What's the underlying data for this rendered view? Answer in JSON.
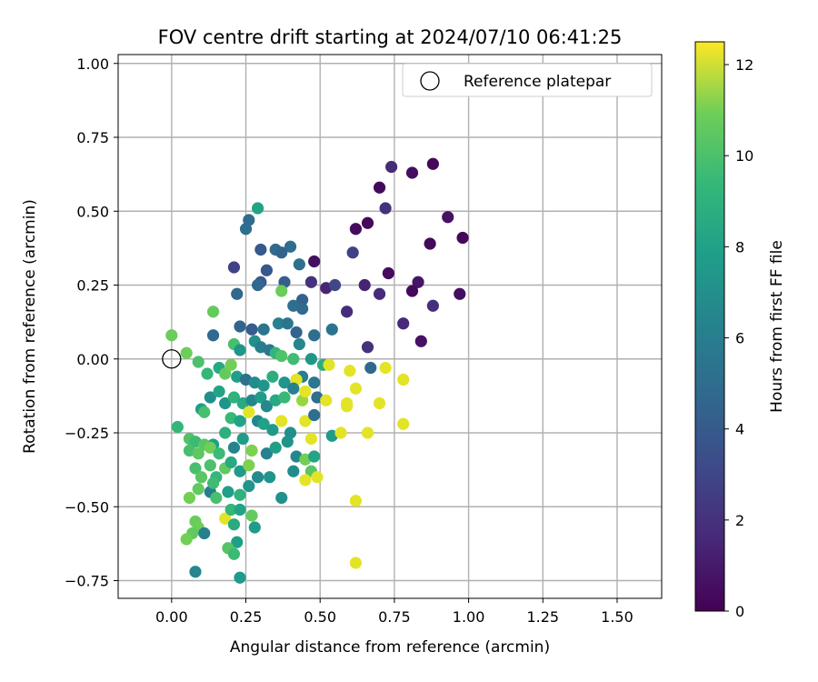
{
  "chart_data": {
    "type": "scatter",
    "title": "FOV centre drift starting at 2024/07/10 06:41:25",
    "xlabel": "Angular distance from reference (arcmin)",
    "ylabel": "Rotation from reference (arcmin)",
    "xlim": [
      -0.18,
      1.65
    ],
    "ylim": [
      -0.81,
      1.03
    ],
    "xticks": [
      "0.00",
      "0.25",
      "0.50",
      "0.75",
      "1.00",
      "1.25",
      "1.50"
    ],
    "xtick_values": [
      0,
      0.25,
      0.5,
      0.75,
      1.0,
      1.25,
      1.5
    ],
    "yticks": [
      "−0.75",
      "−0.50",
      "−0.25",
      "0.00",
      "0.25",
      "0.50",
      "0.75",
      "1.00"
    ],
    "ytick_values": [
      -0.75,
      -0.5,
      -0.25,
      0,
      0.25,
      0.5,
      0.75,
      1.0
    ],
    "grid": true,
    "legend": {
      "position": "top-right",
      "entries": [
        "Reference platepar"
      ]
    },
    "reference_point": {
      "x": 0.0,
      "y": 0.0
    },
    "colorbar": {
      "label": "Hours from first FF file",
      "range": [
        0,
        12.5
      ],
      "ticks": [
        "0",
        "2",
        "4",
        "6",
        "8",
        "10",
        "12"
      ],
      "tick_values": [
        0,
        2,
        4,
        6,
        8,
        10,
        12
      ],
      "colormap": "viridis"
    },
    "points": [
      {
        "x": 0.88,
        "y": 0.66,
        "c": 0.2
      },
      {
        "x": 0.81,
        "y": 0.63,
        "c": 0.5
      },
      {
        "x": 0.74,
        "y": 0.65,
        "c": 1.5
      },
      {
        "x": 0.7,
        "y": 0.58,
        "c": 0.3
      },
      {
        "x": 0.72,
        "y": 0.51,
        "c": 1.8
      },
      {
        "x": 0.93,
        "y": 0.48,
        "c": 0.6
      },
      {
        "x": 0.66,
        "y": 0.46,
        "c": 0.3
      },
      {
        "x": 0.62,
        "y": 0.44,
        "c": 0.4
      },
      {
        "x": 0.98,
        "y": 0.41,
        "c": 0.2
      },
      {
        "x": 0.87,
        "y": 0.39,
        "c": 0.3
      },
      {
        "x": 0.61,
        "y": 0.36,
        "c": 2.5
      },
      {
        "x": 0.48,
        "y": 0.33,
        "c": 0.5
      },
      {
        "x": 0.73,
        "y": 0.29,
        "c": 0.4
      },
      {
        "x": 0.83,
        "y": 0.26,
        "c": 0.7
      },
      {
        "x": 0.81,
        "y": 0.23,
        "c": 0.3
      },
      {
        "x": 0.97,
        "y": 0.22,
        "c": 0.5
      },
      {
        "x": 0.65,
        "y": 0.25,
        "c": 1.2
      },
      {
        "x": 0.7,
        "y": 0.22,
        "c": 1.5
      },
      {
        "x": 0.52,
        "y": 0.24,
        "c": 1.3
      },
      {
        "x": 0.47,
        "y": 0.26,
        "c": 1.8
      },
      {
        "x": 0.55,
        "y": 0.25,
        "c": 2.7
      },
      {
        "x": 0.59,
        "y": 0.16,
        "c": 1.6
      },
      {
        "x": 0.88,
        "y": 0.18,
        "c": 1.7
      },
      {
        "x": 0.78,
        "y": 0.12,
        "c": 1.4
      },
      {
        "x": 0.84,
        "y": 0.06,
        "c": 0.6
      },
      {
        "x": 0.66,
        "y": 0.04,
        "c": 1.8
      },
      {
        "x": 0.67,
        "y": -0.03,
        "c": 4.2
      },
      {
        "x": 0.29,
        "y": 0.51,
        "c": 7.2
      },
      {
        "x": 0.26,
        "y": 0.47,
        "c": 4.4
      },
      {
        "x": 0.25,
        "y": 0.44,
        "c": 4.5
      },
      {
        "x": 0.3,
        "y": 0.37,
        "c": 3.5
      },
      {
        "x": 0.35,
        "y": 0.37,
        "c": 4.3
      },
      {
        "x": 0.4,
        "y": 0.38,
        "c": 4.5
      },
      {
        "x": 0.37,
        "y": 0.36,
        "c": 4.0
      },
      {
        "x": 0.32,
        "y": 0.3,
        "c": 3.4
      },
      {
        "x": 0.43,
        "y": 0.32,
        "c": 4.6
      },
      {
        "x": 0.21,
        "y": 0.31,
        "c": 2.5
      },
      {
        "x": 0.3,
        "y": 0.26,
        "c": 3.6
      },
      {
        "x": 0.29,
        "y": 0.25,
        "c": 4.1
      },
      {
        "x": 0.38,
        "y": 0.26,
        "c": 3.7
      },
      {
        "x": 0.44,
        "y": 0.2,
        "c": 3.9
      },
      {
        "x": 0.41,
        "y": 0.18,
        "c": 4.5
      },
      {
        "x": 0.44,
        "y": 0.17,
        "c": 4.3
      },
      {
        "x": 0.37,
        "y": 0.23,
        "c": 9.6
      },
      {
        "x": 0.22,
        "y": 0.22,
        "c": 4.1
      },
      {
        "x": 0.14,
        "y": 0.16,
        "c": 9.5
      },
      {
        "x": 0.23,
        "y": 0.11,
        "c": 4.0
      },
      {
        "x": 0.27,
        "y": 0.1,
        "c": 3.6
      },
      {
        "x": 0.31,
        "y": 0.1,
        "c": 4.8
      },
      {
        "x": 0.36,
        "y": 0.12,
        "c": 5.5
      },
      {
        "x": 0.39,
        "y": 0.12,
        "c": 4.8
      },
      {
        "x": 0.42,
        "y": 0.09,
        "c": 4.0
      },
      {
        "x": 0.48,
        "y": 0.08,
        "c": 4.5
      },
      {
        "x": 0.54,
        "y": 0.1,
        "c": 4.8
      },
      {
        "x": 0.14,
        "y": 0.08,
        "c": 4.3
      },
      {
        "x": 0.28,
        "y": 0.06,
        "c": 6.2
      },
      {
        "x": 0.3,
        "y": 0.04,
        "c": 5.4
      },
      {
        "x": 0.33,
        "y": 0.03,
        "c": 5.0
      },
      {
        "x": 0.43,
        "y": 0.05,
        "c": 5.8
      },
      {
        "x": 0.21,
        "y": 0.05,
        "c": 8.8
      },
      {
        "x": 0.23,
        "y": 0.03,
        "c": 6.5
      },
      {
        "x": 0.35,
        "y": 0.02,
        "c": 8.2
      },
      {
        "x": 0.37,
        "y": 0.01,
        "c": 9.0
      },
      {
        "x": 0.41,
        "y": 0.0,
        "c": 8.6
      },
      {
        "x": 0.47,
        "y": 0.0,
        "c": 6.6
      },
      {
        "x": 0.51,
        "y": -0.02,
        "c": 7.8
      },
      {
        "x": 0.0,
        "y": 0.08,
        "c": 9.6
      },
      {
        "x": 0.05,
        "y": 0.02,
        "c": 9.7
      },
      {
        "x": 0.09,
        "y": -0.01,
        "c": 8.9
      },
      {
        "x": 0.12,
        "y": -0.05,
        "c": 8.3
      },
      {
        "x": 0.16,
        "y": -0.03,
        "c": 7.5
      },
      {
        "x": 0.18,
        "y": -0.05,
        "c": 9.5
      },
      {
        "x": 0.2,
        "y": -0.02,
        "c": 9.8
      },
      {
        "x": 0.22,
        "y": -0.06,
        "c": 7.0
      },
      {
        "x": 0.25,
        "y": -0.07,
        "c": 4.6
      },
      {
        "x": 0.28,
        "y": -0.08,
        "c": 6.0
      },
      {
        "x": 0.31,
        "y": -0.09,
        "c": 6.5
      },
      {
        "x": 0.34,
        "y": -0.06,
        "c": 7.8
      },
      {
        "x": 0.38,
        "y": -0.08,
        "c": 6.5
      },
      {
        "x": 0.44,
        "y": -0.06,
        "c": 5.3
      },
      {
        "x": 0.48,
        "y": -0.08,
        "c": 5.0
      },
      {
        "x": 0.42,
        "y": -0.07,
        "c": 12.0
      },
      {
        "x": 0.53,
        "y": -0.02,
        "c": 12.0
      },
      {
        "x": 0.6,
        "y": -0.04,
        "c": 12.0
      },
      {
        "x": 0.72,
        "y": -0.03,
        "c": 12.0
      },
      {
        "x": 0.78,
        "y": -0.07,
        "c": 12.0
      },
      {
        "x": 0.1,
        "y": -0.17,
        "c": 7.0
      },
      {
        "x": 0.11,
        "y": -0.18,
        "c": 8.8
      },
      {
        "x": 0.13,
        "y": -0.13,
        "c": 6.2
      },
      {
        "x": 0.16,
        "y": -0.11,
        "c": 7.3
      },
      {
        "x": 0.18,
        "y": -0.15,
        "c": 6.5
      },
      {
        "x": 0.21,
        "y": -0.13,
        "c": 8.0
      },
      {
        "x": 0.24,
        "y": -0.15,
        "c": 7.6
      },
      {
        "x": 0.27,
        "y": -0.14,
        "c": 5.7
      },
      {
        "x": 0.3,
        "y": -0.13,
        "c": 6.9
      },
      {
        "x": 0.32,
        "y": -0.16,
        "c": 5.9
      },
      {
        "x": 0.35,
        "y": -0.14,
        "c": 7.5
      },
      {
        "x": 0.38,
        "y": -0.13,
        "c": 8.4
      },
      {
        "x": 0.41,
        "y": -0.1,
        "c": 5.5
      },
      {
        "x": 0.44,
        "y": -0.14,
        "c": 10.5
      },
      {
        "x": 0.45,
        "y": -0.11,
        "c": 12.0
      },
      {
        "x": 0.49,
        "y": -0.13,
        "c": 4.5
      },
      {
        "x": 0.52,
        "y": -0.14,
        "c": 12.0
      },
      {
        "x": 0.59,
        "y": -0.15,
        "c": 12.0
      },
      {
        "x": 0.62,
        "y": -0.1,
        "c": 12.0
      },
      {
        "x": 0.7,
        "y": -0.15,
        "c": 12.0
      },
      {
        "x": 0.59,
        "y": -0.16,
        "c": 12.0
      },
      {
        "x": 0.02,
        "y": -0.23,
        "c": 8.3
      },
      {
        "x": 0.06,
        "y": -0.27,
        "c": 9.0
      },
      {
        "x": 0.08,
        "y": -0.28,
        "c": 8.5
      },
      {
        "x": 0.11,
        "y": -0.29,
        "c": 9.2
      },
      {
        "x": 0.14,
        "y": -0.29,
        "c": 7.0
      },
      {
        "x": 0.18,
        "y": -0.25,
        "c": 7.9
      },
      {
        "x": 0.2,
        "y": -0.2,
        "c": 8.4
      },
      {
        "x": 0.23,
        "y": -0.21,
        "c": 7.2
      },
      {
        "x": 0.26,
        "y": -0.18,
        "c": 12.0
      },
      {
        "x": 0.29,
        "y": -0.21,
        "c": 5.8
      },
      {
        "x": 0.31,
        "y": -0.22,
        "c": 7.1
      },
      {
        "x": 0.34,
        "y": -0.24,
        "c": 6.8
      },
      {
        "x": 0.37,
        "y": -0.21,
        "c": 12.0
      },
      {
        "x": 0.4,
        "y": -0.25,
        "c": 6.2
      },
      {
        "x": 0.45,
        "y": -0.21,
        "c": 12.0
      },
      {
        "x": 0.48,
        "y": -0.19,
        "c": 4.5
      },
      {
        "x": 0.47,
        "y": -0.27,
        "c": 12.0
      },
      {
        "x": 0.54,
        "y": -0.26,
        "c": 6.8
      },
      {
        "x": 0.57,
        "y": -0.25,
        "c": 12.0
      },
      {
        "x": 0.66,
        "y": -0.25,
        "c": 12.0
      },
      {
        "x": 0.78,
        "y": -0.22,
        "c": 12.0
      },
      {
        "x": 0.06,
        "y": -0.31,
        "c": 8.8
      },
      {
        "x": 0.09,
        "y": -0.32,
        "c": 9.3
      },
      {
        "x": 0.13,
        "y": -0.3,
        "c": 9.7
      },
      {
        "x": 0.16,
        "y": -0.32,
        "c": 8.5
      },
      {
        "x": 0.21,
        "y": -0.3,
        "c": 5.6
      },
      {
        "x": 0.24,
        "y": -0.27,
        "c": 6.9
      },
      {
        "x": 0.27,
        "y": -0.31,
        "c": 10.0
      },
      {
        "x": 0.32,
        "y": -0.32,
        "c": 5.5
      },
      {
        "x": 0.35,
        "y": -0.3,
        "c": 7.0
      },
      {
        "x": 0.39,
        "y": -0.28,
        "c": 6.4
      },
      {
        "x": 0.42,
        "y": -0.33,
        "c": 5.8
      },
      {
        "x": 0.45,
        "y": -0.34,
        "c": 9.8
      },
      {
        "x": 0.48,
        "y": -0.33,
        "c": 7.3
      },
      {
        "x": 0.08,
        "y": -0.37,
        "c": 8.8
      },
      {
        "x": 0.1,
        "y": -0.4,
        "c": 9.2
      },
      {
        "x": 0.13,
        "y": -0.36,
        "c": 8.9
      },
      {
        "x": 0.15,
        "y": -0.4,
        "c": 8.2
      },
      {
        "x": 0.18,
        "y": -0.37,
        "c": 9.4
      },
      {
        "x": 0.2,
        "y": -0.35,
        "c": 7.5
      },
      {
        "x": 0.23,
        "y": -0.38,
        "c": 6.8
      },
      {
        "x": 0.26,
        "y": -0.36,
        "c": 10.0
      },
      {
        "x": 0.29,
        "y": -0.4,
        "c": 6.0
      },
      {
        "x": 0.33,
        "y": -0.4,
        "c": 6.5
      },
      {
        "x": 0.41,
        "y": -0.38,
        "c": 6.0
      },
      {
        "x": 0.47,
        "y": -0.38,
        "c": 9.2
      },
      {
        "x": 0.49,
        "y": -0.4,
        "c": 12.0
      },
      {
        "x": 0.45,
        "y": -0.41,
        "c": 12.0
      },
      {
        "x": 0.06,
        "y": -0.47,
        "c": 9.8
      },
      {
        "x": 0.09,
        "y": -0.44,
        "c": 9.4
      },
      {
        "x": 0.13,
        "y": -0.45,
        "c": 5.2
      },
      {
        "x": 0.15,
        "y": -0.47,
        "c": 8.8
      },
      {
        "x": 0.19,
        "y": -0.45,
        "c": 7.0
      },
      {
        "x": 0.23,
        "y": -0.46,
        "c": 8.0
      },
      {
        "x": 0.26,
        "y": -0.43,
        "c": 6.5
      },
      {
        "x": 0.14,
        "y": -0.42,
        "c": 8.6
      },
      {
        "x": 0.37,
        "y": -0.47,
        "c": 6.3
      },
      {
        "x": 0.62,
        "y": -0.48,
        "c": 12.0
      },
      {
        "x": 0.18,
        "y": -0.54,
        "c": 12.0
      },
      {
        "x": 0.2,
        "y": -0.51,
        "c": 8.3
      },
      {
        "x": 0.23,
        "y": -0.51,
        "c": 7.2
      },
      {
        "x": 0.27,
        "y": -0.53,
        "c": 9.5
      },
      {
        "x": 0.08,
        "y": -0.55,
        "c": 9.6
      },
      {
        "x": 0.09,
        "y": -0.57,
        "c": 9.7
      },
      {
        "x": 0.21,
        "y": -0.56,
        "c": 7.6
      },
      {
        "x": 0.28,
        "y": -0.57,
        "c": 6.8
      },
      {
        "x": 0.07,
        "y": -0.59,
        "c": 9.4
      },
      {
        "x": 0.05,
        "y": -0.61,
        "c": 9.8
      },
      {
        "x": 0.11,
        "y": -0.59,
        "c": 5.4
      },
      {
        "x": 0.22,
        "y": -0.62,
        "c": 7.0
      },
      {
        "x": 0.19,
        "y": -0.64,
        "c": 9.1
      },
      {
        "x": 0.21,
        "y": -0.66,
        "c": 8.5
      },
      {
        "x": 0.62,
        "y": -0.69,
        "c": 12.0
      },
      {
        "x": 0.08,
        "y": -0.72,
        "c": 5.8
      },
      {
        "x": 0.23,
        "y": -0.74,
        "c": 6.8
      }
    ]
  }
}
